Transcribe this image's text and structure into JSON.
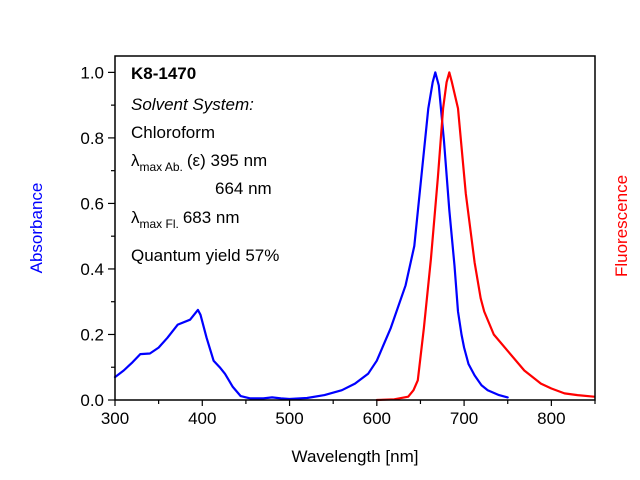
{
  "chart_data": {
    "type": "line",
    "title": "",
    "xlabel": "Wavelength [nm]",
    "ylabel": "Absorbance",
    "y2label": "Fluorescence",
    "xlim": [
      300,
      850
    ],
    "ylim": [
      0,
      1.05
    ],
    "xticks": [
      300,
      400,
      500,
      600,
      700,
      800
    ],
    "xtick_labels": [
      "300",
      "400",
      "500",
      "600",
      "700",
      "800"
    ],
    "yticks": [
      0.0,
      0.2,
      0.4,
      0.6,
      0.8,
      1.0
    ],
    "ytick_labels": [
      "0.0",
      "0.2",
      "0.4",
      "0.6",
      "0.8",
      "1.0"
    ],
    "grid": false,
    "legend": "none",
    "series": [
      {
        "name": "Absorbance",
        "color": "#0000ff",
        "axis": "left",
        "x": [
          300,
          310,
          320,
          329,
          340,
          350,
          360,
          372,
          386,
          392,
          395,
          398,
          405,
          413,
          420,
          426,
          435,
          444,
          455,
          470,
          480,
          490,
          500,
          520,
          540,
          560,
          575,
          590,
          600,
          616,
          633,
          643,
          651,
          659,
          664,
          667,
          671,
          677,
          683,
          689,
          693,
          697,
          700,
          705,
          712,
          720,
          727,
          740,
          750
        ],
        "values": [
          0.07,
          0.09,
          0.115,
          0.14,
          0.142,
          0.16,
          0.19,
          0.23,
          0.245,
          0.265,
          0.275,
          0.26,
          0.19,
          0.12,
          0.1,
          0.08,
          0.04,
          0.012,
          0.005,
          0.005,
          0.008,
          0.005,
          0.003,
          0.006,
          0.015,
          0.03,
          0.05,
          0.08,
          0.12,
          0.22,
          0.35,
          0.47,
          0.68,
          0.89,
          0.97,
          1.0,
          0.96,
          0.79,
          0.58,
          0.41,
          0.27,
          0.2,
          0.16,
          0.11,
          0.075,
          0.045,
          0.03,
          0.015,
          0.008
        ]
      },
      {
        "name": "Fluorescence",
        "color": "#ff0000",
        "axis": "right",
        "x": [
          600,
          620,
          636,
          642,
          647,
          654,
          662,
          670,
          676,
          680,
          683,
          686,
          693,
          702,
          712,
          719,
          723,
          734,
          750,
          769,
          788,
          800,
          815,
          830,
          849
        ],
        "values": [
          0.0,
          0.002,
          0.01,
          0.03,
          0.06,
          0.22,
          0.43,
          0.68,
          0.89,
          0.97,
          1.0,
          0.97,
          0.89,
          0.63,
          0.42,
          0.31,
          0.27,
          0.2,
          0.15,
          0.09,
          0.05,
          0.035,
          0.02,
          0.015,
          0.01
        ]
      }
    ],
    "annotations": {
      "compound": "K8-1470",
      "solvent_heading": "Solvent System:",
      "solvent": "Chloroform",
      "lambda_symbol": "λ",
      "abs_sub": "max Ab.",
      "abs_line": "(ε) 395 nm",
      "abs_line2": "664 nm",
      "fl_sub": "max Fl.",
      "fl_line": "683 nm",
      "quantum_yield": "Quantum yield 57%"
    }
  }
}
